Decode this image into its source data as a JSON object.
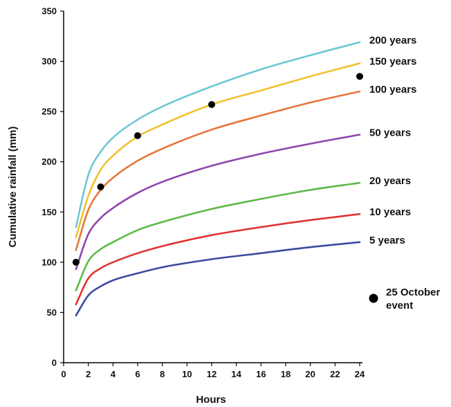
{
  "chart_data": {
    "type": "line",
    "title": "",
    "xlabel": "Hours",
    "ylabel": "Cumulative rainfall (mm)",
    "xlim": [
      0,
      24
    ],
    "ylim": [
      0,
      350
    ],
    "xticks": [
      0,
      2,
      4,
      6,
      8,
      10,
      12,
      14,
      16,
      18,
      20,
      22,
      24
    ],
    "yticks": [
      0,
      50,
      100,
      150,
      200,
      250,
      300,
      350
    ],
    "grid": false,
    "series": [
      {
        "name": "200 years",
        "color": "#6cc7d6",
        "x": [
          1,
          2,
          3,
          4,
          6,
          8,
          12,
          16,
          20,
          24
        ],
        "y": [
          135,
          187,
          210,
          224,
          242,
          255,
          275,
          292,
          306,
          319
        ]
      },
      {
        "name": "150 years",
        "color": "#f2c12e",
        "x": [
          1,
          2,
          3,
          4,
          6,
          8,
          12,
          16,
          20,
          24
        ],
        "y": [
          125,
          166,
          192,
          206,
          225,
          237,
          257,
          271,
          285,
          298
        ]
      },
      {
        "name": "100 years",
        "color": "#e8743b",
        "x": [
          1,
          2,
          3,
          4,
          6,
          8,
          12,
          16,
          20,
          24
        ],
        "y": [
          112,
          152,
          172,
          184,
          201,
          213,
          232,
          246,
          259,
          270
        ]
      },
      {
        "name": "50 years",
        "color": "#8e44ad",
        "x": [
          1,
          2,
          3,
          4,
          6,
          8,
          12,
          16,
          20,
          24
        ],
        "y": [
          93,
          128,
          144,
          154,
          169,
          180,
          196,
          208,
          218,
          227
        ]
      },
      {
        "name": "20 years",
        "color": "#5cb946",
        "x": [
          1,
          2,
          3,
          4,
          6,
          8,
          12,
          16,
          20,
          24
        ],
        "y": [
          72,
          101,
          113,
          120,
          132,
          140,
          153,
          163,
          172,
          179
        ]
      },
      {
        "name": "10 years",
        "color": "#e03232",
        "x": [
          1,
          2,
          3,
          4,
          6,
          8,
          12,
          16,
          20,
          24
        ],
        "y": [
          58,
          84,
          94,
          100,
          109,
          116,
          127,
          135,
          142,
          148
        ]
      },
      {
        "name": "5 years",
        "color": "#3b4aa0",
        "x": [
          1,
          2,
          3,
          4,
          6,
          8,
          12,
          16,
          20,
          24
        ],
        "y": [
          47,
          67,
          76,
          82,
          89,
          95,
          103,
          109,
          115,
          120
        ]
      }
    ],
    "events": {
      "name": "25 October event",
      "legend_lines": [
        "25 October",
        "event"
      ],
      "color": "#000000",
      "points": [
        {
          "x": 1,
          "y": 100
        },
        {
          "x": 3,
          "y": 175
        },
        {
          "x": 6,
          "y": 226
        },
        {
          "x": 12,
          "y": 257
        },
        {
          "x": 24,
          "y": 285
        }
      ]
    }
  }
}
